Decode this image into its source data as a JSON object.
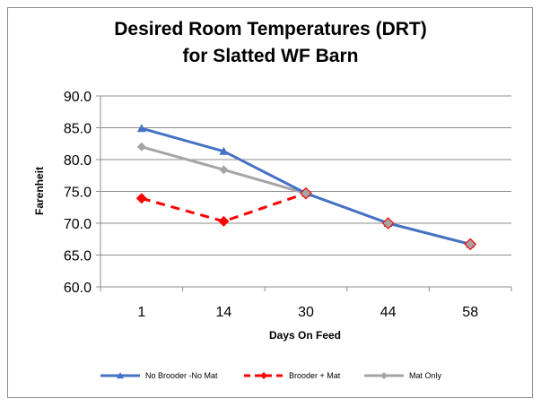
{
  "chart_data": {
    "type": "line",
    "title_line1": "Desired Room Temperatures (DRT)",
    "title_line2": "for Slatted WF Barn",
    "xlabel": "Days On Feed",
    "ylabel": "Farenheit",
    "categories": [
      "1",
      "14",
      "30",
      "44",
      "58"
    ],
    "ylim": [
      60,
      90
    ],
    "yticks": [
      "60.0",
      "65.0",
      "70.0",
      "75.0",
      "80.0",
      "85.0",
      "90.0"
    ],
    "grid": true,
    "legend_position": "bottom",
    "series": [
      {
        "name": "No Brooder -No Mat",
        "values": [
          84.9,
          81.3,
          74.7,
          70.0,
          66.7
        ],
        "color": "#4472C4",
        "marker": "triangle",
        "dash": false
      },
      {
        "name": "Brooder + Mat",
        "values": [
          73.9,
          70.3,
          74.7,
          null,
          null
        ],
        "color": "#FF0000",
        "marker": "diamond",
        "dash": true
      },
      {
        "name": "Mat Only",
        "values": [
          82.0,
          78.4,
          74.7,
          70.0,
          66.7
        ],
        "color": "#A5A5A5",
        "marker": "diamond",
        "dash": false
      }
    ],
    "red_overlay_markers": [
      null,
      null,
      74.7,
      70.0,
      66.7
    ]
  }
}
